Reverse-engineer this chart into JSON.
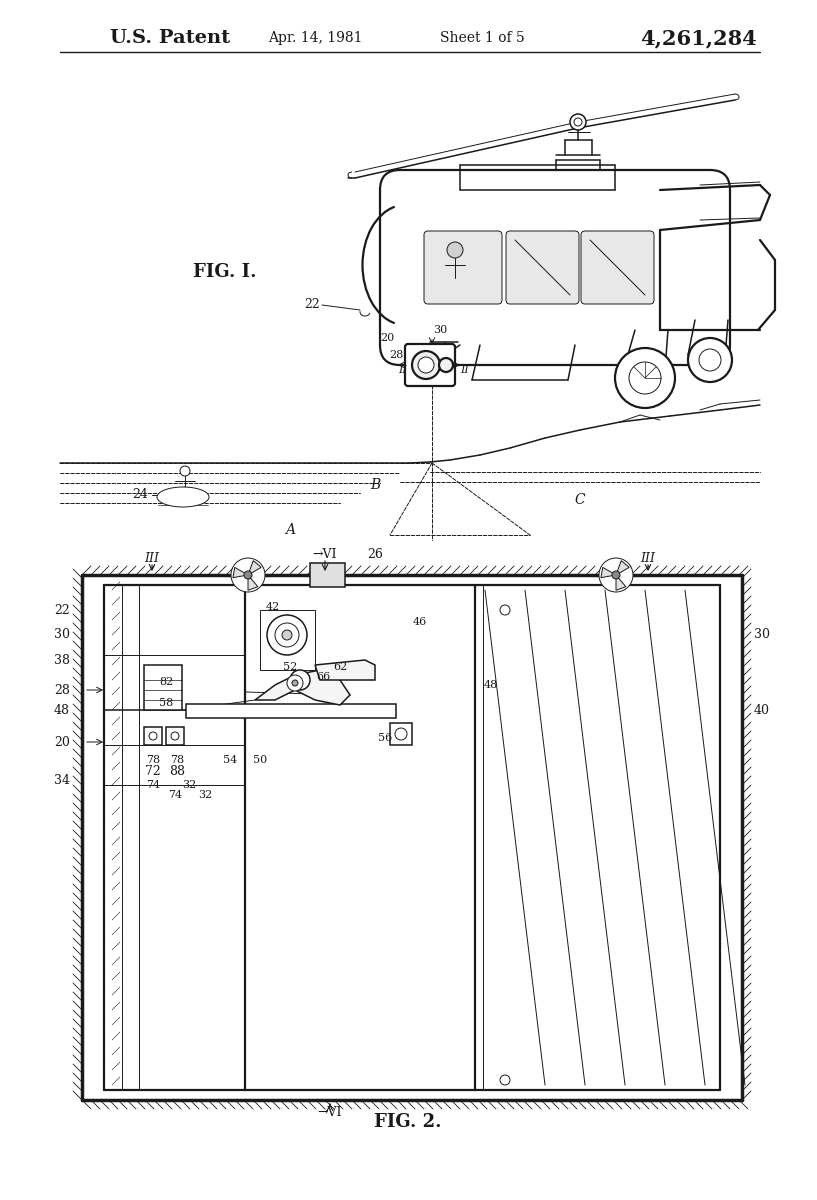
{
  "bg_color": "#ffffff",
  "lc": "#1a1a1a",
  "header_patent_bold": "U.S. Patent",
  "header_date": "Apr. 14, 1981",
  "header_sheet": "Sheet 1 of 5",
  "header_number": "4,261,284",
  "fig1_label": "FIG. I.",
  "fig2_label": "FIG. 2.",
  "lw_main": 1.6,
  "lw_med": 1.1,
  "lw_thin": 0.7,
  "lw_frame": 2.5
}
